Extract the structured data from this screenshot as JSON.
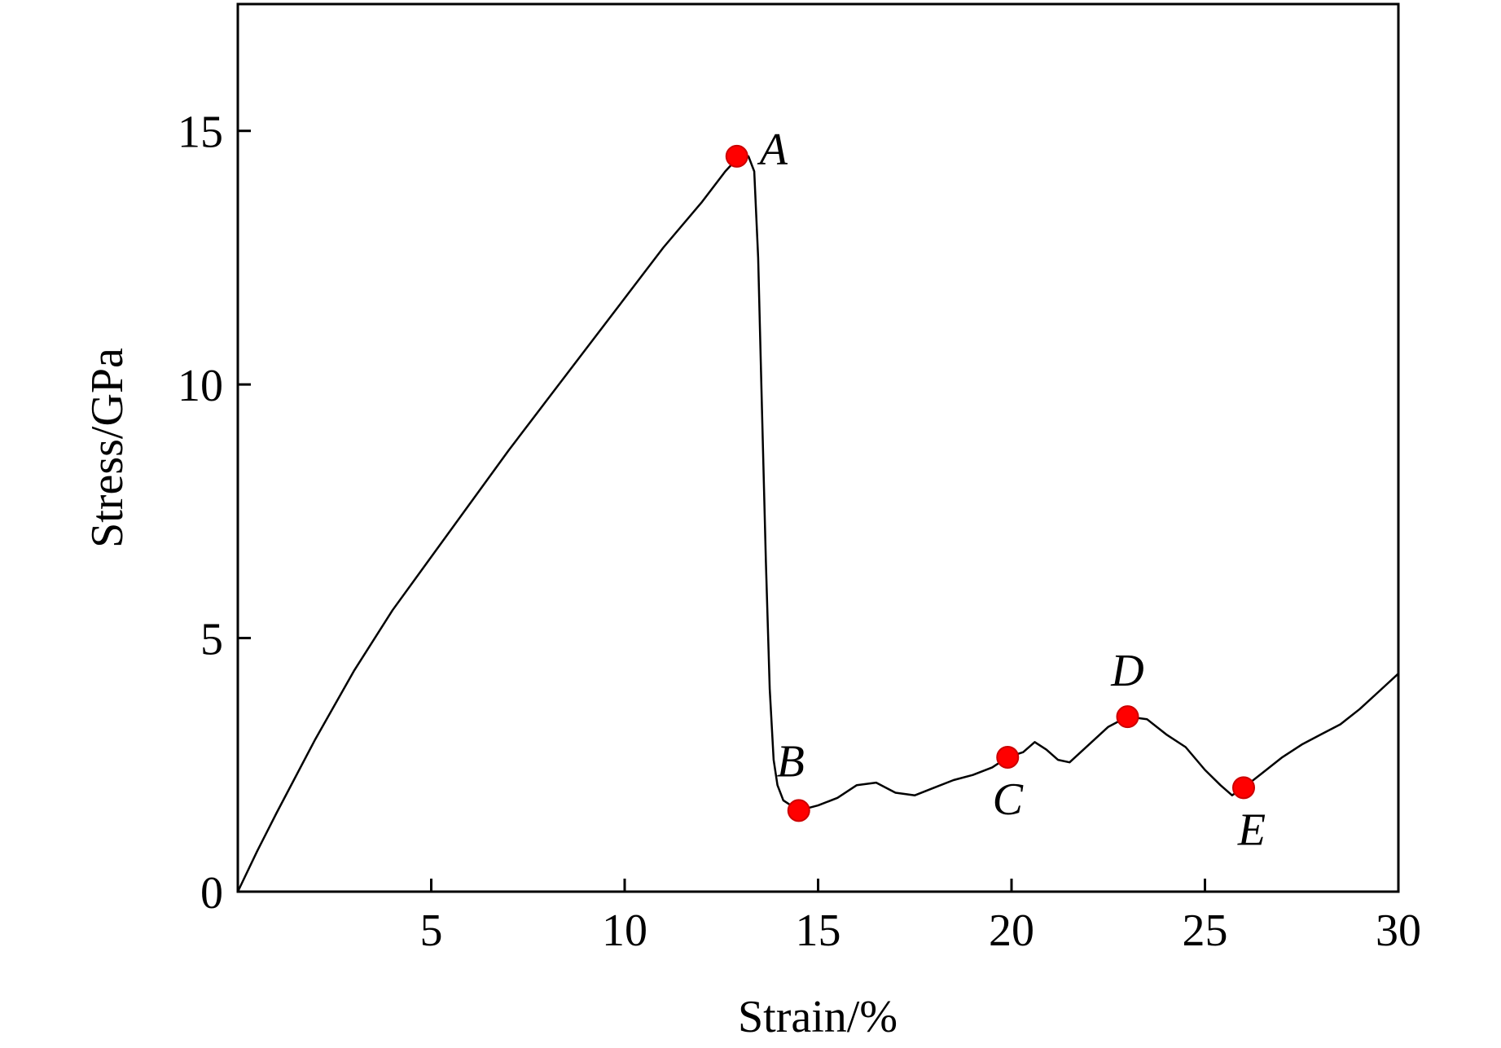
{
  "chart_data": {
    "type": "line",
    "title": "",
    "xlabel": "Strain/%",
    "ylabel": "Stress/GPa",
    "xlim": [
      0,
      30
    ],
    "ylim": [
      0,
      17.5
    ],
    "grid": false,
    "x_ticks": [
      5,
      10,
      15,
      20,
      25,
      30
    ],
    "y_ticks": [
      0,
      5,
      10,
      15
    ],
    "colors": {
      "line": "#000000",
      "marker": "#ff0000",
      "marker_edge": "#cc0000"
    },
    "series": [
      {
        "points": [
          [
            0,
            0
          ],
          [
            0.5,
            0.8
          ],
          [
            1.0,
            1.55
          ],
          [
            2.0,
            3.0
          ],
          [
            3.0,
            4.35
          ],
          [
            4.0,
            5.55
          ],
          [
            5.0,
            6.6
          ],
          [
            6.0,
            7.65
          ],
          [
            7.0,
            8.7
          ],
          [
            8.0,
            9.7
          ],
          [
            9.0,
            10.7
          ],
          [
            10.0,
            11.7
          ],
          [
            11.0,
            12.7
          ],
          [
            12.0,
            13.6
          ],
          [
            12.6,
            14.2
          ],
          [
            12.9,
            14.45
          ],
          [
            13.2,
            14.5
          ],
          [
            13.35,
            14.2
          ],
          [
            13.45,
            12.5
          ],
          [
            13.55,
            9.5
          ],
          [
            13.65,
            6.5
          ],
          [
            13.75,
            4.0
          ],
          [
            13.85,
            2.6
          ],
          [
            13.95,
            2.1
          ],
          [
            14.1,
            1.8
          ],
          [
            14.5,
            1.6
          ],
          [
            15.0,
            1.7
          ],
          [
            15.5,
            1.85
          ],
          [
            16.0,
            2.1
          ],
          [
            16.5,
            2.15
          ],
          [
            17.0,
            1.95
          ],
          [
            17.5,
            1.9
          ],
          [
            18.0,
            2.05
          ],
          [
            18.5,
            2.2
          ],
          [
            19.0,
            2.3
          ],
          [
            19.5,
            2.45
          ],
          [
            19.9,
            2.65
          ],
          [
            20.3,
            2.75
          ],
          [
            20.6,
            2.95
          ],
          [
            20.9,
            2.8
          ],
          [
            21.2,
            2.6
          ],
          [
            21.5,
            2.55
          ],
          [
            22.0,
            2.9
          ],
          [
            22.5,
            3.25
          ],
          [
            23.0,
            3.45
          ],
          [
            23.5,
            3.4
          ],
          [
            24.0,
            3.1
          ],
          [
            24.5,
            2.85
          ],
          [
            25.0,
            2.4
          ],
          [
            25.4,
            2.1
          ],
          [
            25.7,
            1.9
          ],
          [
            26.0,
            2.05
          ],
          [
            26.5,
            2.35
          ],
          [
            27.0,
            2.65
          ],
          [
            27.5,
            2.9
          ],
          [
            28.0,
            3.1
          ],
          [
            28.5,
            3.3
          ],
          [
            29.0,
            3.6
          ],
          [
            29.5,
            3.95
          ],
          [
            30.0,
            4.3
          ]
        ]
      }
    ],
    "marked_points": [
      {
        "label": "A",
        "x": 12.9,
        "y": 14.5
      },
      {
        "label": "B",
        "x": 14.5,
        "y": 1.6
      },
      {
        "label": "C",
        "x": 19.9,
        "y": 2.65
      },
      {
        "label": "D",
        "x": 23.0,
        "y": 3.45
      },
      {
        "label": "E",
        "x": 26.0,
        "y": 2.05
      }
    ]
  }
}
